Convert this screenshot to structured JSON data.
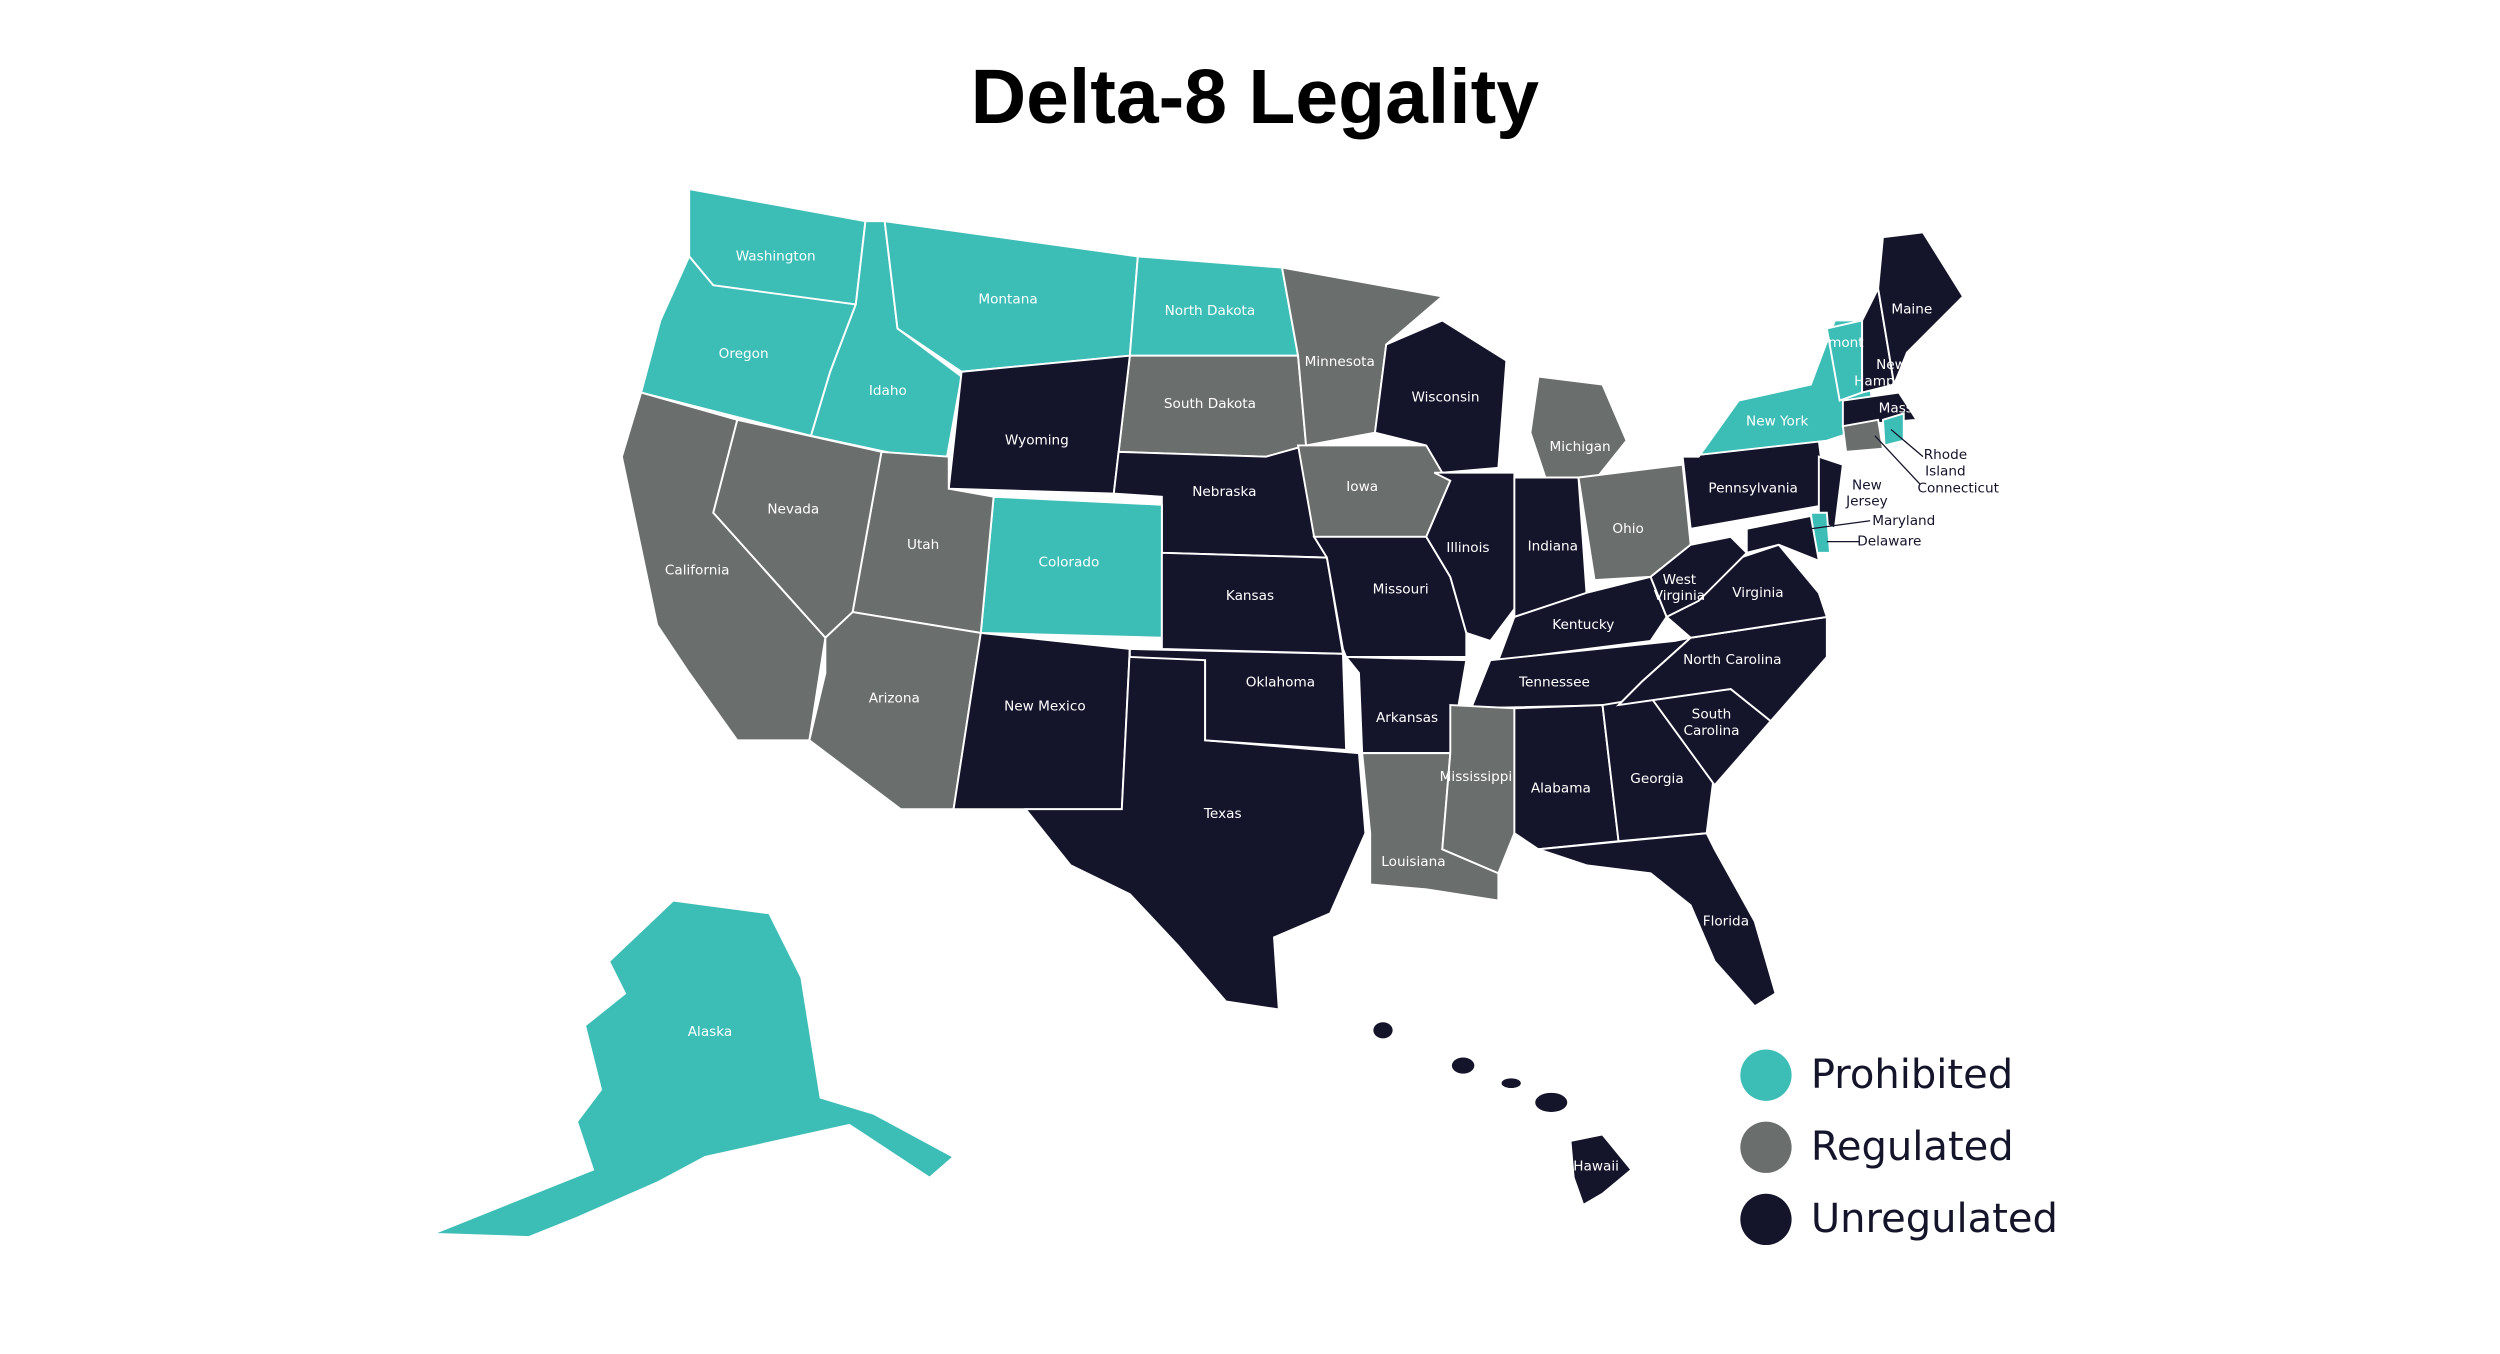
{
  "title": "Delta-8 Legality",
  "legend": [
    {
      "label": "Prohibited",
      "color": "#3cbdb6"
    },
    {
      "label": "Regulated",
      "color": "#6a6e6d"
    },
    {
      "label": "Unregulated",
      "color": "#14142b"
    }
  ],
  "states": [
    {
      "label": "Washington",
      "status": "Prohibited"
    },
    {
      "label": "Oregon",
      "status": "Prohibited"
    },
    {
      "label": "Idaho",
      "status": "Prohibited"
    },
    {
      "label": "Montana",
      "status": "Prohibited"
    },
    {
      "label": "North Dakota",
      "status": "Prohibited"
    },
    {
      "label": "South Dakota",
      "status": "Regulated"
    },
    {
      "label": "Wyoming",
      "status": "Unregulated"
    },
    {
      "label": "Nebraska",
      "status": "Unregulated"
    },
    {
      "label": "Colorado",
      "status": "Prohibited"
    },
    {
      "label": "Utah",
      "status": "Regulated"
    },
    {
      "label": "Nevada",
      "status": "Regulated"
    },
    {
      "label": "California",
      "status": "Regulated"
    },
    {
      "label": "Arizona",
      "status": "Regulated"
    },
    {
      "label": "New Mexico",
      "status": "Unregulated"
    },
    {
      "label": "Texas",
      "status": "Unregulated"
    },
    {
      "label": "Oklahoma",
      "status": "Unregulated"
    },
    {
      "label": "Kansas",
      "status": "Unregulated"
    },
    {
      "label": "Minnesota",
      "status": "Regulated"
    },
    {
      "label": "Iowa",
      "status": "Regulated"
    },
    {
      "label": "Missouri",
      "status": "Unregulated"
    },
    {
      "label": "Arkansas",
      "status": "Unregulated"
    },
    {
      "label": "Louisiana",
      "status": "Regulated"
    },
    {
      "label": "Wisconsin",
      "status": "Unregulated"
    },
    {
      "label": "Illinois",
      "status": "Unregulated"
    },
    {
      "label": "Michigan",
      "status": "Regulated"
    },
    {
      "label": "Indiana",
      "status": "Unregulated"
    },
    {
      "label": "Ohio",
      "status": "Regulated"
    },
    {
      "label": "Kentucky",
      "status": "Unregulated"
    },
    {
      "label": "Tennessee",
      "status": "Unregulated"
    },
    {
      "label": "Mississippi",
      "status": "Regulated"
    },
    {
      "label": "Alabama",
      "status": "Unregulated"
    },
    {
      "label": "Georgia",
      "status": "Unregulated"
    },
    {
      "label": "Florida",
      "status": "Unregulated"
    },
    {
      "label": "South Carolina",
      "status": "Unregulated"
    },
    {
      "label": "North Carolina",
      "status": "Unregulated"
    },
    {
      "label": "Virginia",
      "status": "Unregulated"
    },
    {
      "label": "West Virginia",
      "status": "Unregulated"
    },
    {
      "label": "Pennsylvania",
      "status": "Unregulated"
    },
    {
      "label": "New York",
      "status": "Prohibited"
    },
    {
      "label": "Vermont",
      "status": "Prohibited"
    },
    {
      "label": "New Hampshire",
      "status": "Unregulated"
    },
    {
      "label": "Maine",
      "status": "Unregulated"
    },
    {
      "label": "Mass",
      "status": "Unregulated"
    },
    {
      "label": "Connecticut",
      "status": "Regulated"
    },
    {
      "label": "Rhode Island",
      "status": "Prohibited"
    },
    {
      "label": "New Jersey",
      "status": "Unregulated"
    },
    {
      "label": "Delaware",
      "status": "Prohibited"
    },
    {
      "label": "Maryland",
      "status": "Unregulated"
    },
    {
      "label": "Alaska",
      "status": "Prohibited"
    },
    {
      "label": "Hawaii",
      "status": "Unregulated"
    }
  ]
}
